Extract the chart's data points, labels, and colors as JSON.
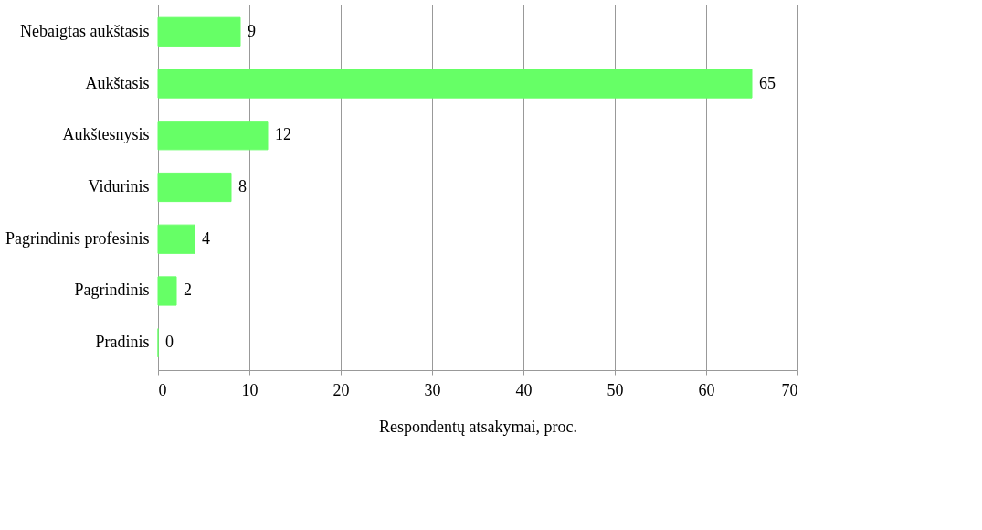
{
  "chart_data": {
    "type": "bar",
    "orientation": "horizontal",
    "xlabel": "Respondentų atsakymai, proc.",
    "categories": [
      "Nebaigtas aukštasis",
      "Aukštasis",
      "Aukštesnysis",
      "Vidurinis",
      "Pagrindinis profesinis",
      "Pagrindinis",
      "Pradinis"
    ],
    "values": [
      9,
      65,
      12,
      8,
      4,
      2,
      0
    ],
    "color": "#66ff66",
    "xlim": [
      0,
      70
    ],
    "xticks": [
      0,
      10,
      20,
      30,
      40,
      50,
      60,
      70
    ],
    "grid": "x",
    "data_labels": true
  }
}
